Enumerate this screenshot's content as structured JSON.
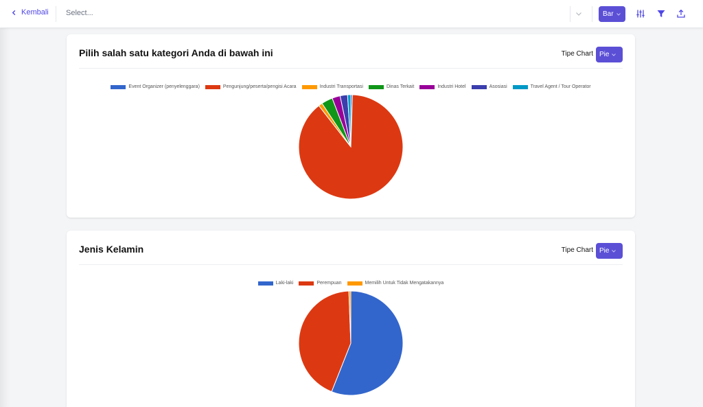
{
  "topbar": {
    "back_label": "Kembali",
    "select_placeholder": "Select...",
    "chart_type_button": "Bar"
  },
  "icons": {
    "back": "chevron-left-icon",
    "select_dropdown": "chevron-down-icon",
    "settings": "sliders-icon",
    "filter": "filter-icon",
    "export": "upload-icon"
  },
  "colors": {
    "accent": "#5b4fd6",
    "link": "#4f46e5"
  },
  "cards": [
    {
      "title": "Pilih salah satu kategori Anda di bawah ini",
      "tipe_label": "Tipe Chart",
      "tipe_value": "Pie"
    },
    {
      "title": "Jenis Kelamin",
      "tipe_label": "Tipe Chart",
      "tipe_value": "Pie"
    }
  ],
  "chart_data": [
    {
      "type": "pie",
      "legend_position": "top",
      "categories": [
        "Event Organizer (penyelenggara)",
        "Pengunjung/peserta/pengisi Acara",
        "Industri Transportasi",
        "Dinas Terkait",
        "Industri Hotel",
        "Asosiasi",
        "Travel Agent / Tour Operator"
      ],
      "values": [
        0.5,
        89.0,
        1.2,
        3.5,
        2.5,
        2.3,
        1.0
      ],
      "colors": [
        "#3366cc",
        "#dc3912",
        "#ff9900",
        "#109618",
        "#990099",
        "#3b3eac",
        "#0099c6"
      ]
    },
    {
      "type": "pie",
      "legend_position": "top",
      "categories": [
        "Laki-laki",
        "Perempuan",
        "Memilih Untuk Tidak Mengatakannya"
      ],
      "values": [
        56.0,
        43.4,
        0.6
      ],
      "colors": [
        "#3366cc",
        "#dc3912",
        "#ff9900"
      ]
    }
  ]
}
